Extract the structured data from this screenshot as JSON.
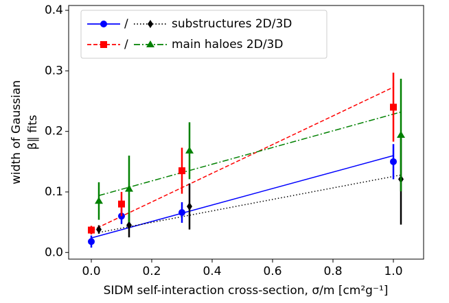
{
  "chart_data": {
    "type": "errorbar",
    "xlabel": "SIDM self-interaction cross-section, σ/m [cm²g⁻¹]",
    "ylabel": [
      "width of Gaussian",
      "β∥ fits"
    ],
    "xlim": [
      -0.075,
      1.1
    ],
    "ylim": [
      -0.011,
      0.408
    ],
    "xticks": [
      {
        "value": 0,
        "label": "0.0"
      },
      0.2,
      0.4,
      0.6,
      0.8,
      {
        "value": 1,
        "label": "1.0"
      }
    ],
    "yticks": [
      {
        "value": 0,
        "label": "0.0"
      },
      0.1,
      0.2,
      0.3,
      0.4
    ],
    "legend": [
      {
        "separator": "/",
        "label": "substructures 2D/3D"
      },
      {
        "separator": "/",
        "label": "main haloes 2D/3D"
      }
    ],
    "series": [
      {
        "color": "#0000ff",
        "marker": "circle",
        "linestyle": "solid",
        "x": [
          0,
          0.1,
          0.3,
          1
        ],
        "values": [
          0.018,
          0.06,
          0.066,
          0.15
        ],
        "errors": [
          0.01,
          0.013,
          0.017,
          0.029
        ],
        "fit_x": [
          0,
          1
        ],
        "fit_values": [
          0.024,
          0.16
        ]
      },
      {
        "color": "#000000",
        "marker": "diamond",
        "linestyle": "dotted",
        "x": [
          0.025,
          0.125,
          0.325,
          1.025
        ],
        "values": [
          0.038,
          0.045,
          0.076,
          0.121
        ],
        "errors": [
          0.007,
          0.02,
          0.038,
          0.075
        ],
        "fit_x": [
          0.025,
          1.025
        ],
        "fit_values": [
          0.033,
          0.128
        ]
      },
      {
        "color": "#ff0000",
        "marker": "square",
        "linestyle": "dashed",
        "x": [
          0,
          0.1,
          0.3,
          1
        ],
        "values": [
          0.037,
          0.08,
          0.135,
          0.24
        ],
        "errors": [
          0.007,
          0.02,
          0.038,
          0.057
        ],
        "fit_x": [
          0,
          1
        ],
        "fit_values": [
          0.036,
          0.273
        ]
      },
      {
        "color": "#008000",
        "marker": "triangle",
        "linestyle": "dashdot",
        "x": [
          0.025,
          0.125,
          0.325,
          1.025
        ],
        "values": [
          0.085,
          0.105,
          0.168,
          0.194
        ],
        "errors": [
          0.031,
          0.055,
          0.047,
          0.093
        ],
        "fit_x": [
          0.025,
          1.025
        ],
        "fit_values": [
          0.094,
          0.232
        ]
      }
    ]
  }
}
